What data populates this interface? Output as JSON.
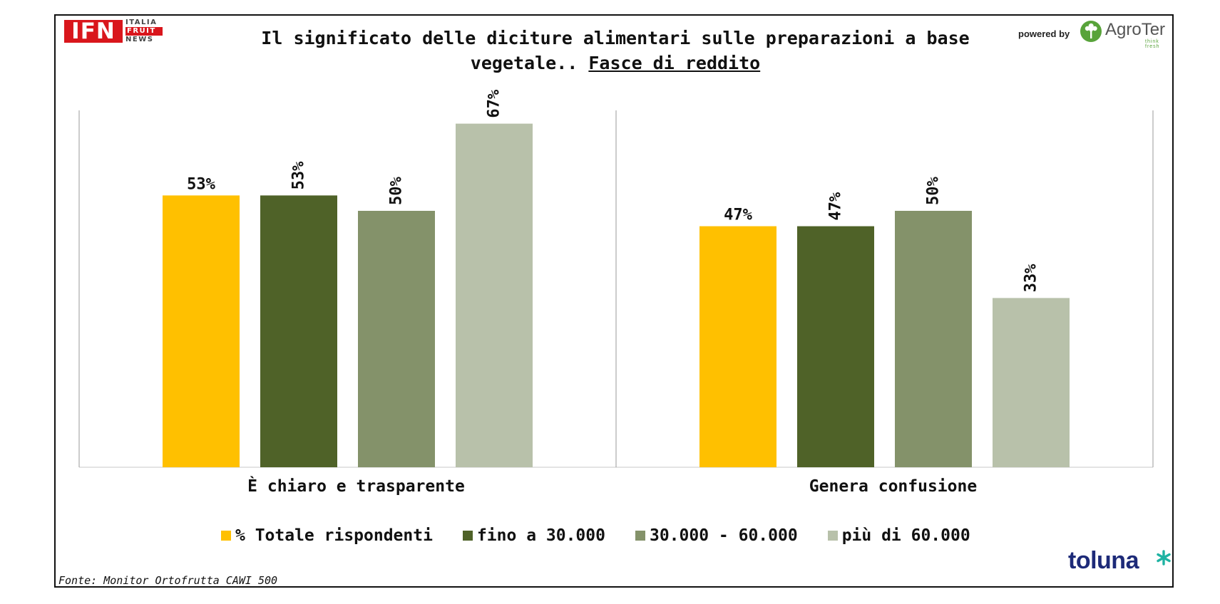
{
  "header": {
    "logo_left_main": "IFN",
    "logo_left_line1": "ITALIA",
    "logo_left_line2": "FRUIT",
    "logo_left_line3": "NEWS",
    "title_line1": "Il significato delle diciture alimentari sulle preparazioni a base",
    "title_line2_plain": "vegetale.. ",
    "title_line2_underlined": "Fasce di reddito",
    "powered_by": "powered by",
    "logo_right_name": "AgroTer",
    "logo_right_tagline": "think fresh"
  },
  "footer": {
    "source": "Fonte: Monitor Ortofrutta CAWI 500",
    "brand": "toluna",
    "brand_mark_icon": "asterisk-icon"
  },
  "colors": {
    "total": "#FFC000",
    "low": "#4F6228",
    "mid": "#84926A",
    "high": "#B8C1AA",
    "brand_red": "#D9161C",
    "brand_green": "#58A33A",
    "toluna_blue": "#1D2A78",
    "toluna_star": "#1FB3A3"
  },
  "chart_data": {
    "type": "bar",
    "categories": [
      "È chiaro e trasparente",
      "Genera confusione"
    ],
    "series": [
      {
        "name": "% Totale rispondenti",
        "values": [
          53,
          47
        ],
        "labels": [
          "53%",
          "47%"
        ],
        "color": "#FFC000",
        "label_rotated": false
      },
      {
        "name": "fino a 30.000",
        "values": [
          53,
          47
        ],
        "labels": [
          "53%",
          "47%"
        ],
        "color": "#4F6228",
        "label_rotated": true
      },
      {
        "name": "30.000 - 60.000",
        "values": [
          50,
          50
        ],
        "labels": [
          "50%",
          "50%"
        ],
        "color": "#84926A",
        "label_rotated": true
      },
      {
        "name": "più di 60.000",
        "values": [
          67,
          33
        ],
        "labels": [
          "67%",
          "33%"
        ],
        "color": "#B8C1AA",
        "label_rotated": true
      }
    ],
    "ylim": [
      0,
      70
    ],
    "grid": false,
    "legend_position": "bottom"
  }
}
